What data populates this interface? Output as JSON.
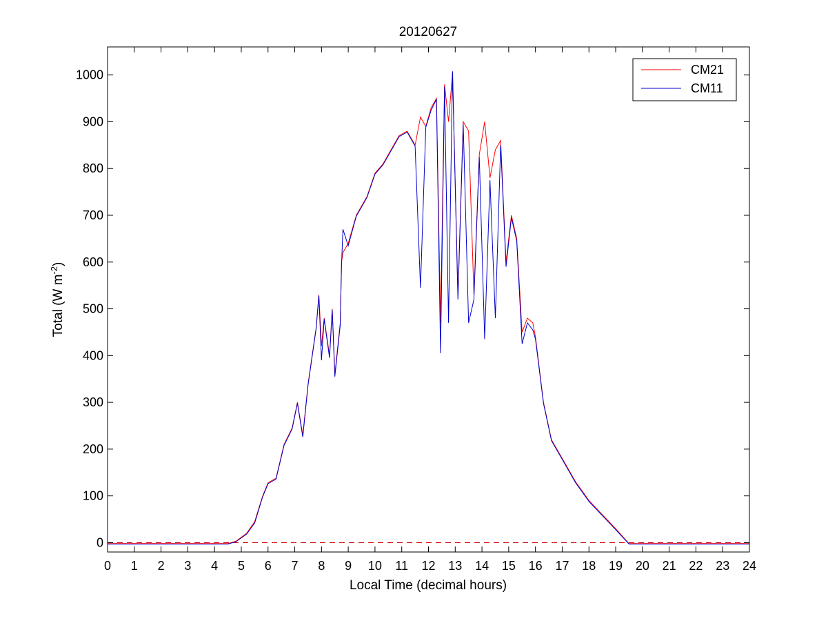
{
  "chart_data": {
    "type": "line",
    "title": "20120627",
    "xlabel": "Local Time (decimal hours)",
    "ylabel": "Total (W m",
    "ylabel_sup": "-2",
    "ylabel_close": ")",
    "xlim": [
      0,
      24
    ],
    "ylim": [
      -20,
      1060
    ],
    "xticks": [
      0,
      1,
      2,
      3,
      4,
      5,
      6,
      7,
      8,
      9,
      10,
      11,
      12,
      13,
      14,
      15,
      16,
      17,
      18,
      19,
      20,
      21,
      22,
      23,
      24
    ],
    "yticks": [
      0,
      100,
      200,
      300,
      400,
      500,
      600,
      700,
      800,
      900,
      1000
    ],
    "grid": false,
    "legend_position": "top-right",
    "reference_line": {
      "y": 0,
      "style": "dashed",
      "color": "#cc0000"
    },
    "series": [
      {
        "name": "CM21",
        "color": "#ff0000",
        "x": [
          0,
          4.5,
          4.8,
          5.2,
          5.5,
          5.8,
          6.0,
          6.3,
          6.6,
          6.9,
          7.1,
          7.3,
          7.5,
          7.8,
          7.9,
          8.0,
          8.1,
          8.3,
          8.4,
          8.5,
          8.7,
          8.75,
          8.8,
          9.0,
          9.3,
          9.7,
          10.0,
          10.3,
          10.6,
          10.9,
          11.2,
          11.5,
          11.7,
          11.9,
          12.1,
          12.3,
          12.45,
          12.6,
          12.75,
          12.9,
          13.1,
          13.3,
          13.5,
          13.7,
          13.9,
          14.1,
          14.3,
          14.5,
          14.7,
          14.9,
          15.1,
          15.3,
          15.5,
          15.7,
          15.9,
          16.0,
          16.3,
          16.6,
          17.0,
          17.5,
          18.0,
          18.5,
          19.0,
          19.5,
          19.8,
          20.0,
          24
        ],
        "y": [
          -2,
          -2,
          3,
          20,
          45,
          100,
          128,
          138,
          210,
          245,
          300,
          230,
          340,
          460,
          530,
          420,
          480,
          400,
          500,
          360,
          470,
          600,
          620,
          640,
          700,
          740,
          790,
          810,
          840,
          870,
          880,
          850,
          910,
          890,
          930,
          950,
          470,
          980,
          900,
          1005,
          530,
          900,
          880,
          530,
          830,
          900,
          780,
          840,
          860,
          600,
          700,
          650,
          450,
          480,
          470,
          440,
          300,
          220,
          180,
          130,
          90,
          60,
          30,
          -2,
          -2,
          -2,
          -2
        ]
      },
      {
        "name": "CM11",
        "color": "#0000cc",
        "x": [
          0,
          4.5,
          4.8,
          5.2,
          5.5,
          5.8,
          6.0,
          6.3,
          6.6,
          6.9,
          7.1,
          7.3,
          7.5,
          7.8,
          7.9,
          8.0,
          8.1,
          8.3,
          8.4,
          8.5,
          8.7,
          8.75,
          8.8,
          9.0,
          9.3,
          9.7,
          10.0,
          10.3,
          10.6,
          10.9,
          11.2,
          11.5,
          11.7,
          11.9,
          12.1,
          12.3,
          12.45,
          12.6,
          12.75,
          12.9,
          13.1,
          13.3,
          13.5,
          13.7,
          13.9,
          14.1,
          14.3,
          14.5,
          14.7,
          14.9,
          15.1,
          15.3,
          15.5,
          15.7,
          15.9,
          16.0,
          16.3,
          16.6,
          17.0,
          17.5,
          18.0,
          18.5,
          19.0,
          19.5,
          19.8,
          20.0,
          24
        ],
        "y": [
          -3,
          -3,
          2,
          18,
          42,
          98,
          126,
          136,
          208,
          243,
          298,
          226,
          338,
          458,
          528,
          390,
          478,
          395,
          498,
          355,
          465,
          595,
          670,
          635,
          698,
          738,
          788,
          808,
          838,
          868,
          878,
          848,
          545,
          888,
          925,
          948,
          405,
          975,
          470,
          1008,
          520,
          895,
          470,
          520,
          825,
          435,
          775,
          480,
          850,
          590,
          695,
          645,
          425,
          470,
          455,
          435,
          298,
          218,
          178,
          128,
          88,
          58,
          28,
          -3,
          -3,
          -3,
          -3
        ]
      }
    ]
  }
}
